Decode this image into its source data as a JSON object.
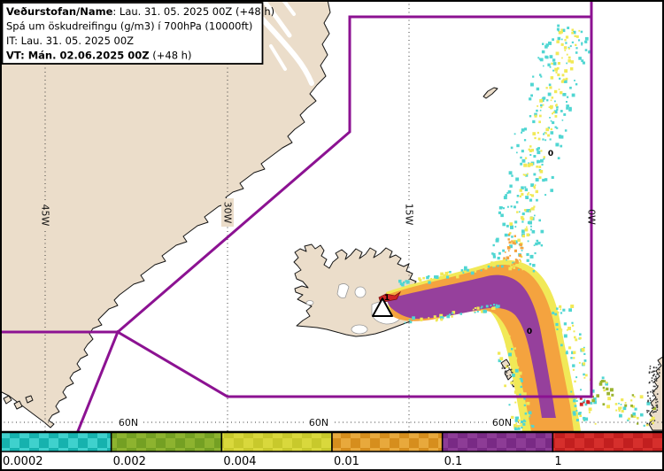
{
  "header": {
    "line1_label": "Veðurstofan/Name",
    "line1_rest": ": Lau. 31. 05. 2025 00Z (+48 h)",
    "line2": "Spá um öskudreifingu (g/m3) í 700hPa (10000ft)",
    "line3": "IT: Lau. 31. 05. 2025 00Z",
    "line4_bold": "VT: Mán. 02.06.2025 00Z",
    "line4_rest": " (+48 h)"
  },
  "graticule": {
    "meridian_labels": [
      "45W",
      "30W",
      "15W",
      "0W"
    ],
    "parallel_label": "60N"
  },
  "contour_labels": {
    "north_zero": "0",
    "south_zero": "0",
    "vent_one": "1"
  },
  "colorbar": {
    "values": [
      "0.0002",
      "0.002",
      "0.004",
      "0.01",
      "0.1",
      "1"
    ],
    "colors": [
      {
        "name": "cyan",
        "light": "#3fd1cd",
        "dark": "#16b2ae"
      },
      {
        "name": "olive",
        "light": "#8db32f",
        "dark": "#74a023"
      },
      {
        "name": "yellow",
        "light": "#d9d83c",
        "dark": "#c8c92c"
      },
      {
        "name": "orange",
        "light": "#e8a93c",
        "dark": "#d68e1d"
      },
      {
        "name": "purple",
        "light": "#8d3c96",
        "dark": "#792a85"
      },
      {
        "name": "red",
        "light": "#d62f2c",
        "dark": "#c21f1f"
      }
    ]
  },
  "map_colors": {
    "land": "#ebddca",
    "sea": "#ffffff",
    "coast": "#141414",
    "boundary": "#8c1292",
    "plume_cyan": "#50d6d2",
    "plume_yellow": "#f1e957",
    "plume_orange": "#f4a33f",
    "plume_purple": "#96409c",
    "plume_red": "#d02525",
    "plume_olive": "#9ab32f",
    "texture_dark": "#3c3c3c"
  }
}
